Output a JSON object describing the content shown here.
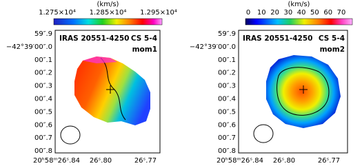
{
  "panels": [
    {
      "unit": "(km/s)",
      "colorbar_ticks": [
        "1.275×10⁴",
        "1.285×10⁴",
        "1.295×10⁴"
      ],
      "source": "IRAS 20551-4250",
      "line": "CS 5-4",
      "moment": "mom1",
      "y_labels": [
        "59″.9",
        "−42°39′00″.0",
        "00″.1",
        "00″.2",
        "00″.3",
        "00″.4",
        "00″.5",
        "00″.6",
        "00″.7",
        "00″.8"
      ],
      "x_labels": [
        "20ʰ58ᵐ26ˢ.84",
        "26ˢ.80",
        "26ˢ.77"
      ]
    },
    {
      "unit": "(km/s)",
      "colorbar_ticks": [
        "0",
        "10",
        "20",
        "30",
        "40",
        "50",
        "60",
        "70"
      ],
      "source": "IRAS 20551-4250",
      "line": "CS 5-4",
      "moment": "mom2",
      "y_labels": [
        "59″.9",
        "−42°39′00″.0",
        "00″.1",
        "00″.2",
        "00″.3",
        "00″.4",
        "00″.5",
        "00″.6",
        "00″.7",
        "00″.8"
      ],
      "x_labels": [
        "20ʰ58ᵐ26ˢ.84",
        "26ˢ.80",
        "26ˢ.77"
      ]
    }
  ]
}
